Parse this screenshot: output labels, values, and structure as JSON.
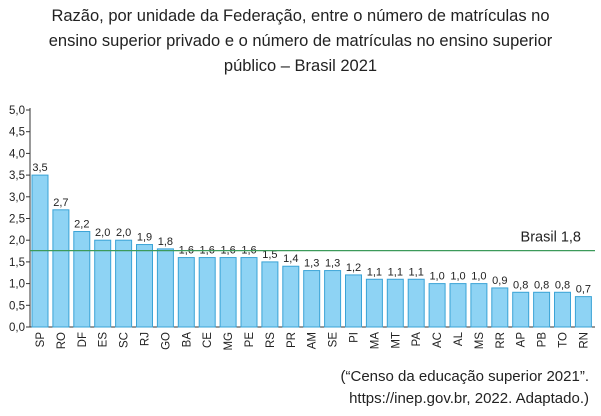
{
  "title_lines": [
    "Razão, por unidade da Federação, entre o número de matrículas no",
    "ensino superior privado e o número de matrículas no ensino superior",
    "público – Brasil 2021"
  ],
  "source_lines": [
    "(“Censo da educação superior 2021”.",
    "https://inep.gov.br, 2022. Adaptado.)"
  ],
  "colors": {
    "bar_fill": "#8ed3f4",
    "bar_stroke": "#3aa3d6",
    "reference_line": "#3c9a5a",
    "axis": "#333333"
  },
  "chart_data": {
    "type": "bar",
    "title": "Razão, por unidade da Federação, entre o número de matrículas no ensino superior privado e o número de matrículas no ensino superior público – Brasil 2021",
    "categories": [
      "SP",
      "RO",
      "DF",
      "ES",
      "SC",
      "RJ",
      "GO",
      "BA",
      "CE",
      "MG",
      "PE",
      "RS",
      "PR",
      "AM",
      "SE",
      "PI",
      "MA",
      "MT",
      "PA",
      "AC",
      "AL",
      "MS",
      "RR",
      "AP",
      "PB",
      "TO",
      "RN"
    ],
    "values": [
      3.5,
      2.7,
      2.2,
      2.0,
      2.0,
      1.9,
      1.8,
      1.6,
      1.6,
      1.6,
      1.6,
      1.5,
      1.4,
      1.3,
      1.3,
      1.2,
      1.1,
      1.1,
      1.1,
      1.0,
      1.0,
      1.0,
      0.9,
      0.8,
      0.8,
      0.8,
      0.7
    ],
    "value_labels": [
      "3,5",
      "2,7",
      "2,2",
      "2,0",
      "2,0",
      "1,9",
      "1,8",
      "1,6",
      "1,6",
      "1,6",
      "1,6",
      "1,5",
      "1,4",
      "1,3",
      "1,3",
      "1,2",
      "1,1",
      "1,1",
      "1,1",
      "1,0",
      "1,0",
      "1,0",
      "0,9",
      "0,8",
      "0,8",
      "0,8",
      "0,7"
    ],
    "ylim": [
      0,
      5.0
    ],
    "yticks": [
      "0,0",
      "0,5",
      "1,0",
      "1,5",
      "2,0",
      "2,5",
      "3,0",
      "3,5",
      "4,0",
      "4,5",
      "5,0"
    ],
    "reference_line": {
      "label": "Brasil 1,8",
      "value": 1.76
    },
    "grid": false,
    "legend": "none"
  }
}
